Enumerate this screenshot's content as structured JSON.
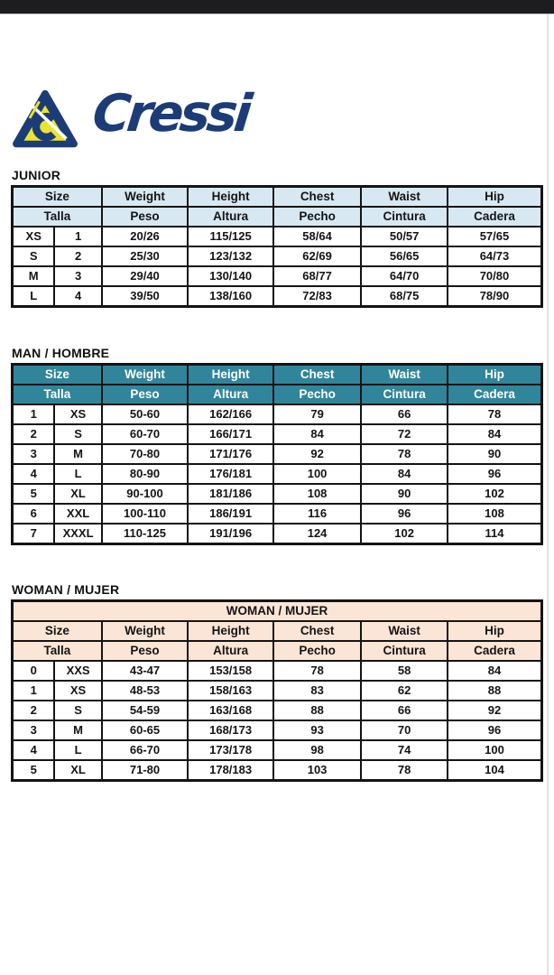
{
  "page": {
    "top_bar_color": "#1d1d1f",
    "background_color": "#ffffff"
  },
  "logo": {
    "brand": "Cressi",
    "icon": "cressi-triangle-harpoon-logo",
    "navy": "#1c3c77",
    "yellow": "#e9e42f"
  },
  "tables": [
    {
      "section_label": "JUNIOR",
      "title": "",
      "header_bg": "#d8e8f2",
      "header_text_color": "#141414",
      "headers_en": [
        "Size",
        "Weight",
        "Height",
        "Chest",
        "Waist",
        "Hip"
      ],
      "headers_es": [
        "Talla",
        "Peso",
        "Altura",
        "Pecho",
        "Cintura",
        "Cadera"
      ],
      "rows": [
        [
          "XS",
          "1",
          "20/26",
          "115/125",
          "58/64",
          "50/57",
          "57/65"
        ],
        [
          "S",
          "2",
          "25/30",
          "123/132",
          "62/69",
          "56/65",
          "64/73"
        ],
        [
          "M",
          "3",
          "29/40",
          "130/140",
          "68/77",
          "64/70",
          "70/80"
        ],
        [
          "L",
          "4",
          "39/50",
          "138/160",
          "72/83",
          "68/75",
          "78/90"
        ]
      ]
    },
    {
      "section_label": "MAN / HOMBRE",
      "title": "",
      "header_bg": "#31859b",
      "header_text_color": "#ffffff",
      "headers_en": [
        "Size",
        "Weight",
        "Height",
        "Chest",
        "Waist",
        "Hip"
      ],
      "headers_es": [
        "Talla",
        "Peso",
        "Altura",
        "Pecho",
        "Cintura",
        "Cadera"
      ],
      "rows": [
        [
          "1",
          "XS",
          "50-60",
          "162/166",
          "79",
          "66",
          "78"
        ],
        [
          "2",
          "S",
          "60-70",
          "166/171",
          "84",
          "72",
          "84"
        ],
        [
          "3",
          "M",
          "70-80",
          "171/176",
          "92",
          "78",
          "90"
        ],
        [
          "4",
          "L",
          "80-90",
          "176/181",
          "100",
          "84",
          "96"
        ],
        [
          "5",
          "XL",
          "90-100",
          "181/186",
          "108",
          "90",
          "102"
        ],
        [
          "6",
          "XXL",
          "100-110",
          "186/191",
          "116",
          "96",
          "108"
        ],
        [
          "7",
          "XXXL",
          "110-125",
          "191/196",
          "124",
          "102",
          "114"
        ]
      ]
    },
    {
      "section_label": "WOMAN / MUJER",
      "title": "WOMAN / MUJER",
      "header_bg": "#fbe5d6",
      "header_text_color": "#141414",
      "headers_en": [
        "Size",
        "Weight",
        "Height",
        "Chest",
        "Waist",
        "Hip"
      ],
      "headers_es": [
        "Talla",
        "Peso",
        "Altura",
        "Pecho",
        "Cintura",
        "Cadera"
      ],
      "rows": [
        [
          "0",
          "XXS",
          "43-47",
          "153/158",
          "78",
          "58",
          "84"
        ],
        [
          "1",
          "XS",
          "48-53",
          "158/163",
          "83",
          "62",
          "88"
        ],
        [
          "2",
          "S",
          "54-59",
          "163/168",
          "88",
          "66",
          "92"
        ],
        [
          "3",
          "M",
          "60-65",
          "168/173",
          "93",
          "70",
          "96"
        ],
        [
          "4",
          "L",
          "66-70",
          "173/178",
          "98",
          "74",
          "100"
        ],
        [
          "5",
          "XL",
          "71-80",
          "178/183",
          "103",
          "78",
          "104"
        ]
      ]
    }
  ]
}
